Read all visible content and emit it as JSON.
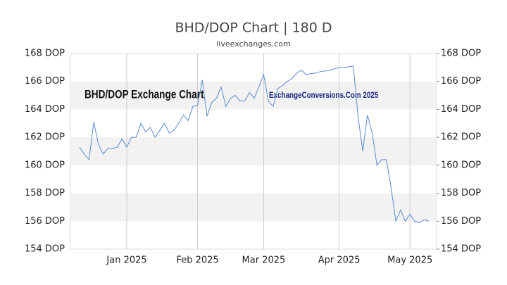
{
  "chart_data": {
    "type": "line",
    "title": "BHD/DOP Chart | 180 D",
    "subtitle": "liveexchanges.com",
    "annotations": [
      "BHD/DOP Exchange Chart",
      "ExchangeConversions.Com 2025"
    ],
    "categories": [
      null,
      null,
      null,
      null,
      null,
      null,
      null,
      null,
      null,
      null,
      "Jan 2025",
      null,
      null,
      null,
      null,
      null,
      null,
      null,
      null,
      null,
      null,
      null,
      null,
      null,
      null,
      "Feb 2025",
      null,
      null,
      null,
      null,
      null,
      null,
      null,
      null,
      null,
      null,
      null,
      null,
      null,
      "Mar 2025",
      null,
      null,
      null,
      null,
      null,
      null,
      null,
      null,
      null,
      null,
      null,
      null,
      null,
      null,
      null,
      "Apr 2025",
      null,
      null,
      null,
      null,
      null,
      null,
      null,
      null,
      null,
      null,
      null,
      null,
      null,
      null,
      "May 2025",
      null,
      null,
      null,
      null
    ],
    "series": [
      {
        "name": "BHD/DOP",
        "color": "#5b8bd0",
        "values": [
          161.3,
          160.8,
          160.4,
          163.1,
          161.5,
          160.8,
          161.2,
          161.2,
          161.3,
          161.9,
          161.3,
          162.0,
          162.0,
          163.0,
          162.4,
          162.7,
          162.0,
          162.5,
          163.0,
          162.3,
          162.5,
          163.0,
          163.6,
          163.2,
          164.2,
          164.3,
          166.1,
          163.5,
          164.5,
          164.8,
          165.6,
          164.2,
          164.8,
          165.0,
          164.6,
          164.6,
          165.2,
          164.8,
          165.6,
          166.5,
          164.6,
          164.2,
          165.5,
          165.7,
          166.0,
          166.2,
          166.6,
          166.8,
          166.5,
          166.55,
          166.6,
          166.7,
          166.75,
          166.8,
          166.9,
          167.0,
          167.0,
          167.05,
          167.1,
          163.5,
          161.0,
          163.6,
          162.3,
          160.0,
          160.4,
          160.4,
          158.4,
          156.0,
          156.8,
          156.0,
          156.5,
          156.0,
          155.9,
          156.1,
          156.0
        ]
      }
    ],
    "ylim": [
      154,
      168
    ],
    "yticks": [
      {
        "value": 154,
        "label": "154 DOP"
      },
      {
        "value": 156,
        "label": "156 DOP"
      },
      {
        "value": 158,
        "label": "158 DOP"
      },
      {
        "value": 160,
        "label": "160 DOP"
      },
      {
        "value": 162,
        "label": "162 DOP"
      },
      {
        "value": 164,
        "label": "164 DOP"
      },
      {
        "value": 166,
        "label": "166 DOP"
      },
      {
        "value": 168,
        "label": "168 DOP"
      }
    ],
    "grid": true,
    "bands": true
  }
}
